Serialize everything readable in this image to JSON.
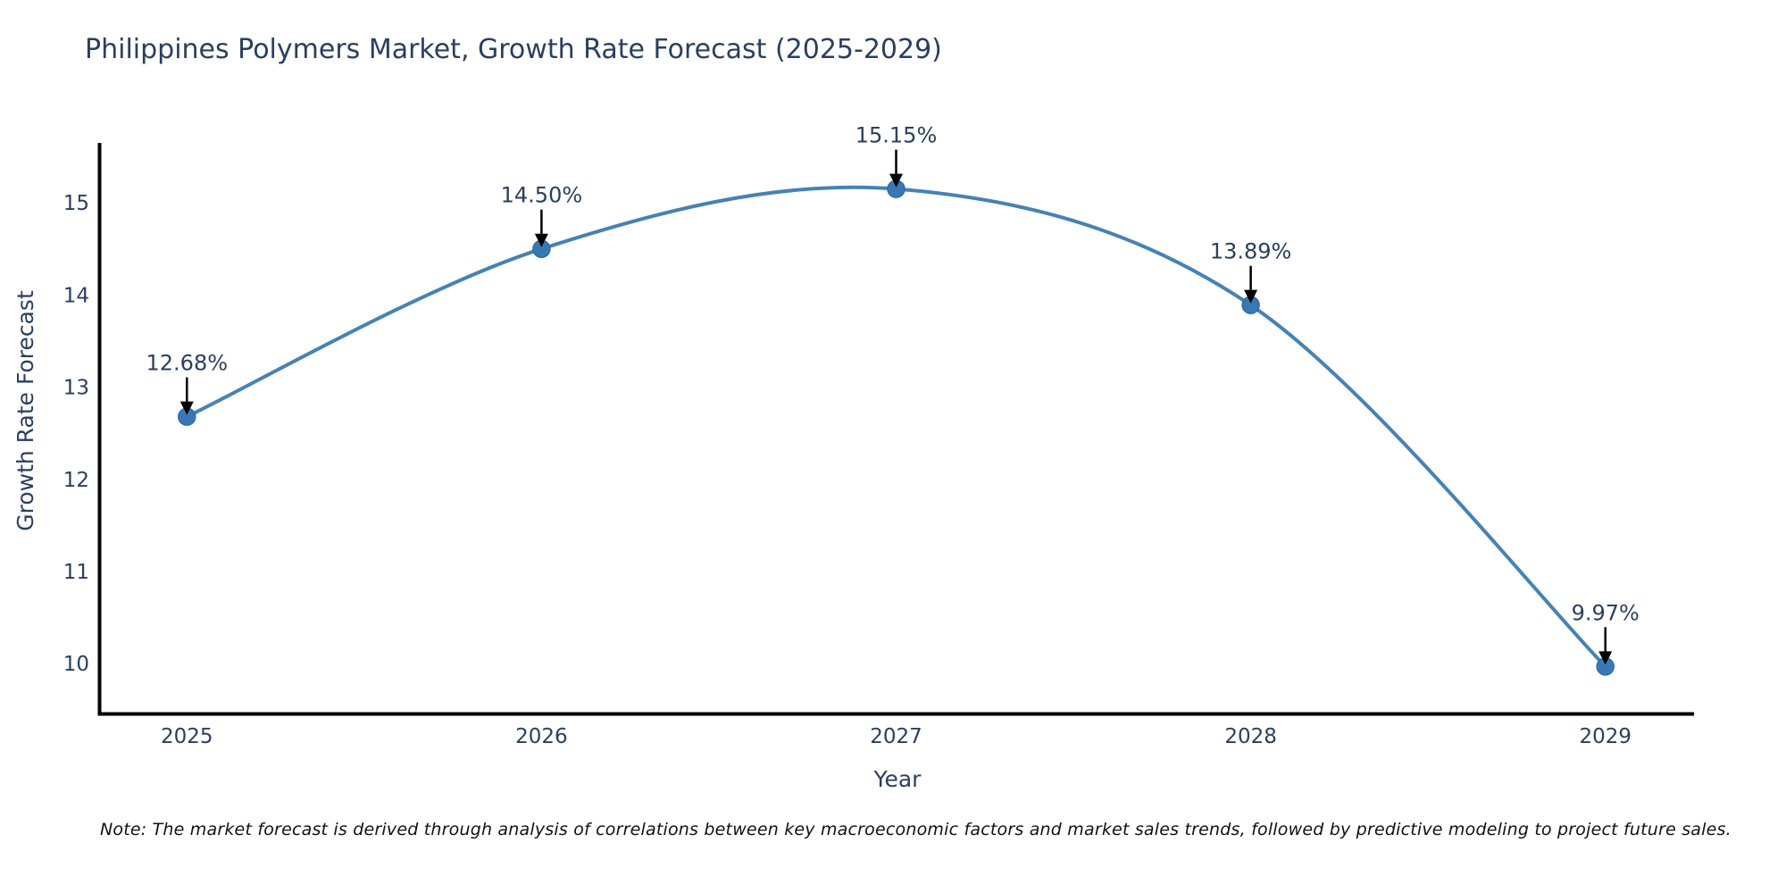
{
  "header": {
    "title": "Philippines Polymers Market, Growth Rate Forecast (2025-2029)"
  },
  "footnote": {
    "text": "Note: The market forecast is derived through analysis of correlations between key macroeconomic factors and market sales trends, followed by predictive modeling to project future sales."
  },
  "chart_data": {
    "type": "line",
    "title": "Philippines Polymers Market, Growth Rate Forecast (2025-2029)",
    "xlabel": "Year",
    "ylabel": "Growth Rate Forecast",
    "x": [
      2025,
      2026,
      2027,
      2028,
      2029
    ],
    "y": [
      12.68,
      14.5,
      15.15,
      13.89,
      9.97
    ],
    "point_labels": [
      "12.68%",
      "14.50%",
      "15.15%",
      "13.89%",
      "9.97%"
    ],
    "x_tick_labels": [
      "2025",
      "2026",
      "2027",
      "2028",
      "2029"
    ],
    "y_ticks": [
      10,
      11,
      12,
      13,
      14,
      15
    ],
    "xlim": [
      2024.75,
      2029.25
    ],
    "ylim": [
      9.45,
      15.65
    ],
    "grid": false,
    "legend": null,
    "smooth_spline": true,
    "colors": {
      "line": "#4682b4",
      "marker_fill": "#3a78b5",
      "marker_edge": "#2f6ca8",
      "axis_line": "#000000",
      "arrow": "#000000",
      "text": "#2a3f5f"
    }
  }
}
